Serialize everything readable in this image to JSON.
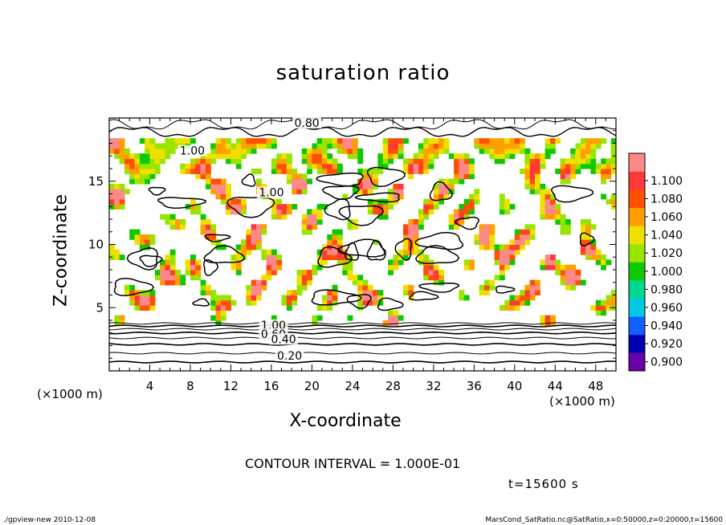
{
  "chart_data": {
    "type": "heatmap",
    "title": "saturation ratio",
    "xlabel": "X-coordinate",
    "ylabel": "Z-coordinate",
    "x_unit": "(×1000 m)",
    "xlim": [
      0,
      50
    ],
    "ylim": [
      0,
      20
    ],
    "x_ticks": [
      "4",
      "8",
      "12",
      "16",
      "20",
      "24",
      "28",
      "32",
      "36",
      "40",
      "44",
      "48"
    ],
    "y_ticks": [
      "5",
      "10",
      "15"
    ],
    "colorbar": {
      "levels": [
        "0.900",
        "0.920",
        "0.940",
        "0.960",
        "0.980",
        "1.000",
        "1.020",
        "1.040",
        "1.060",
        "1.080",
        "1.100"
      ],
      "colors": [
        "#6a00a8",
        "#0000b0",
        "#1060ff",
        "#00c8e6",
        "#00d890",
        "#10c800",
        "#98e600",
        "#f0e000",
        "#ffa000",
        "#ff5000",
        "#ff3838",
        "#ff8888"
      ]
    },
    "contour_labels": [
      "0.80",
      "1.00",
      "1.00",
      "1.00",
      "0.60",
      "0.40",
      "0.20"
    ],
    "contour_interval": "CONTOUR INTERVAL = 1.000E-01",
    "time": "t=15600 s"
  },
  "footer": {
    "left": "./gpview-new  2010-12-08",
    "right": "MarsCond_SatRatio.nc@SatRatio,x=0:50000,z=0:20000,t=15600"
  }
}
